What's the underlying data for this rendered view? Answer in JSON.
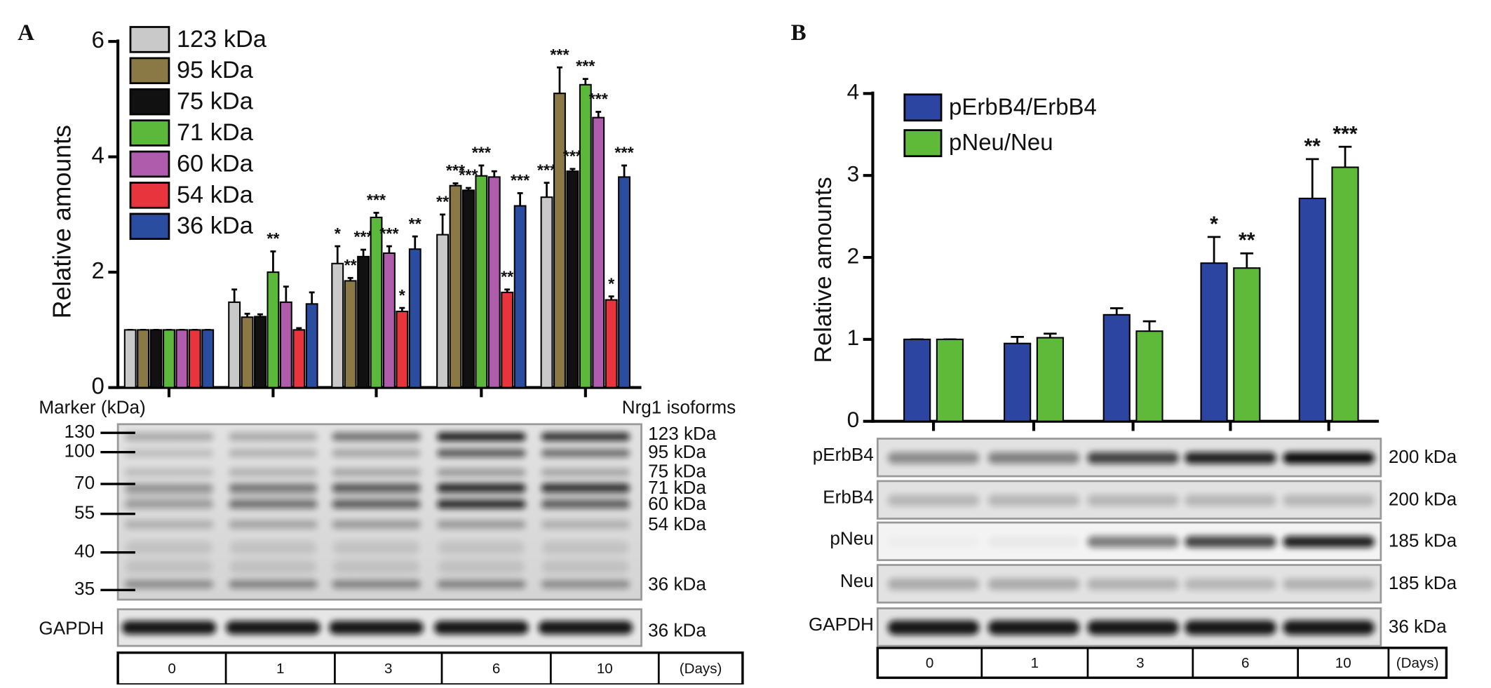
{
  "chart_data": [
    {
      "type": "bar",
      "panel": "A",
      "y_label": "Relative amounts",
      "x_label": "(Days)",
      "categories": [
        "0",
        "1",
        "3",
        "6",
        "10"
      ],
      "ylim": [
        0,
        6
      ],
      "yticks": [
        0,
        2,
        4,
        6
      ],
      "series": [
        {
          "name": "123 kDa",
          "color": "#c9c9c9",
          "values": [
            1,
            1.48,
            2.15,
            2.65,
            3.3
          ],
          "errors": [
            0,
            0.22,
            0.3,
            0.35,
            0.25
          ],
          "significance": [
            null,
            null,
            "*",
            "**",
            "***"
          ]
        },
        {
          "name": "95 kDa",
          "color": "#8a7944",
          "values": [
            1,
            1.22,
            1.85,
            3.5,
            5.1
          ],
          "errors": [
            0,
            0.06,
            0.05,
            0.04,
            0.45
          ],
          "significance": [
            null,
            null,
            "**",
            "***",
            "***"
          ]
        },
        {
          "name": "75 kDa",
          "color": "#111111",
          "values": [
            1,
            1.23,
            2.27,
            3.42,
            3.75
          ],
          "errors": [
            0,
            0.04,
            0.12,
            0.04,
            0.04
          ],
          "significance": [
            null,
            null,
            "***",
            "***",
            "***"
          ]
        },
        {
          "name": "71 kDa",
          "color": "#5cb83a",
          "values": [
            1,
            2.0,
            2.95,
            3.67,
            5.25
          ],
          "errors": [
            0,
            0.36,
            0.08,
            0.18,
            0.1
          ],
          "significance": [
            null,
            "**",
            "***",
            "***",
            "***"
          ]
        },
        {
          "name": "60 kDa",
          "color": "#b05cad",
          "values": [
            1,
            1.48,
            2.33,
            3.65,
            4.68
          ],
          "errors": [
            0,
            0.27,
            0.12,
            0.1,
            0.1
          ],
          "significance": [
            null,
            null,
            "***",
            null,
            "***"
          ]
        },
        {
          "name": "54 kDa",
          "color": "#e8343d",
          "values": [
            1,
            1.0,
            1.32,
            1.65,
            1.52
          ],
          "errors": [
            0,
            0.03,
            0.06,
            0.05,
            0.06
          ],
          "significance": [
            null,
            null,
            "*",
            "**",
            "*"
          ]
        },
        {
          "name": "36 kDa",
          "color": "#2b4da0",
          "values": [
            1,
            1.45,
            2.4,
            3.15,
            3.65
          ],
          "errors": [
            0,
            0.2,
            0.22,
            0.22,
            0.2
          ],
          "significance": [
            null,
            null,
            "**",
            "***",
            "***"
          ]
        }
      ],
      "blot": {
        "marker_label": "Marker (kDa)",
        "isoform_label": "Nrg1 isoforms",
        "markers": [
          "130",
          "100",
          "70",
          "55",
          "40",
          "35"
        ],
        "isoforms": [
          "123 kDa",
          "95 kDa",
          "75 kDa",
          "71 kDa",
          "60 kDa",
          "54 kDa",
          "36 kDa"
        ],
        "loading": {
          "name": "GAPDH",
          "size": "36 kDa"
        }
      }
    },
    {
      "type": "bar",
      "panel": "B",
      "y_label": "Relative amounts",
      "x_label": "(Days)",
      "categories": [
        "0",
        "1",
        "3",
        "6",
        "10"
      ],
      "ylim": [
        0,
        4
      ],
      "yticks": [
        0,
        1,
        2,
        3,
        4
      ],
      "series": [
        {
          "name": "pErbB4/ErbB4",
          "color": "#2b45a0",
          "values": [
            1,
            0.95,
            1.3,
            1.93,
            2.72
          ],
          "errors": [
            0,
            0.08,
            0.08,
            0.32,
            0.48
          ],
          "significance": [
            null,
            null,
            null,
            "*",
            "**"
          ]
        },
        {
          "name": "pNeu/Neu",
          "color": "#5fba3a",
          "values": [
            1,
            1.02,
            1.1,
            1.87,
            3.1
          ],
          "errors": [
            0,
            0.05,
            0.12,
            0.18,
            0.25
          ],
          "significance": [
            null,
            null,
            null,
            "**",
            "***"
          ]
        }
      ],
      "blot": {
        "rows": [
          {
            "name": "pErbB4",
            "size": "200 kDa"
          },
          {
            "name": "ErbB4",
            "size": "200 kDa"
          },
          {
            "name": "pNeu",
            "size": "185 kDa"
          },
          {
            "name": "Neu",
            "size": "185 kDa"
          },
          {
            "name": "GAPDH",
            "size": "36 kDa"
          }
        ]
      }
    }
  ]
}
